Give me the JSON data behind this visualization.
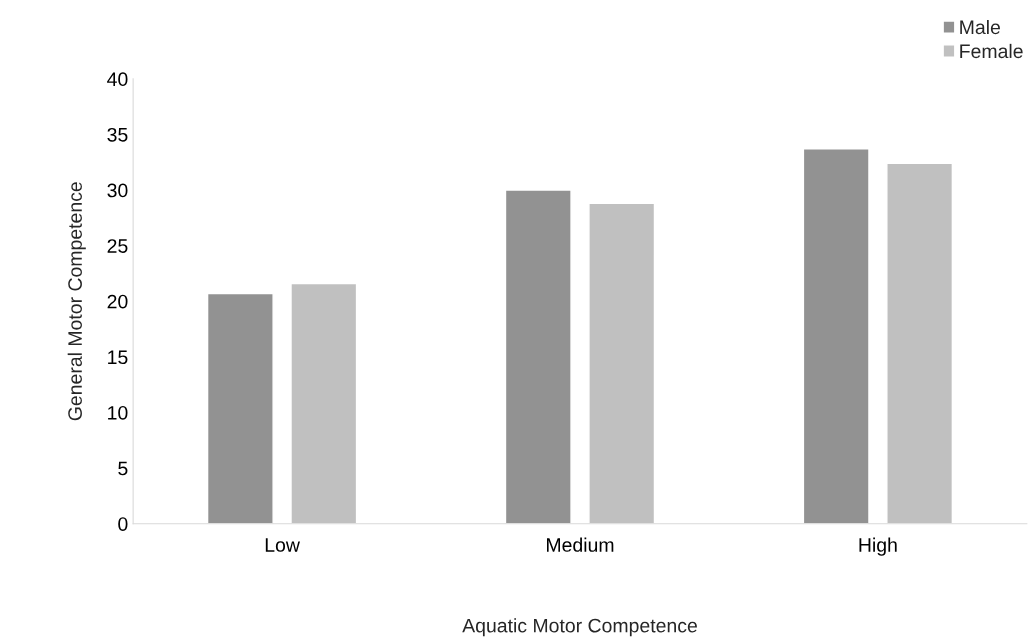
{
  "chart_data": {
    "type": "bar",
    "xlabel": "Aquatic Motor Competence",
    "ylabel": "General Motor Competence",
    "categories": [
      "Low",
      "Medium",
      "High"
    ],
    "series": [
      {
        "name": "Male",
        "color": "#929292",
        "values": [
          20.7,
          30.0,
          33.7
        ]
      },
      {
        "name": "Female",
        "color": "#c0c0c0",
        "values": [
          21.6,
          28.8,
          32.4
        ]
      }
    ],
    "ylim": [
      0,
      40
    ],
    "yticks": [
      0,
      5,
      10,
      15,
      20,
      25,
      30,
      35,
      40
    ],
    "grid": false,
    "legend": "top right"
  }
}
